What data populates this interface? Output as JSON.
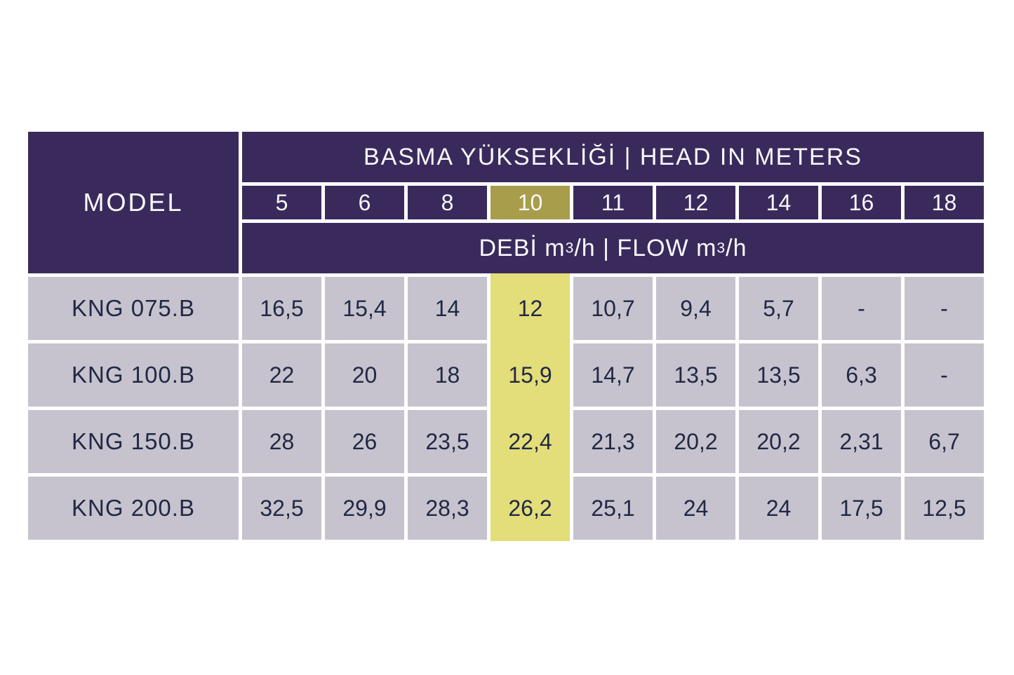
{
  "colors": {
    "header_purple": "#3a2a5c",
    "header_highlight_olive": "#a89d4a",
    "column_highlight_yellow": "#e3dd7a",
    "cell_gray": "#c6c3ce",
    "header_text": "#faf9fc",
    "cell_text": "#212844",
    "grid_gap_white": "#ffffff"
  },
  "table": {
    "model_header": "MODEL",
    "head_title": "BASMA YÜKSEKLİĞİ | HEAD IN METERS",
    "flow_label": {
      "p1": "DEBİ m",
      "sup1": "3",
      "p2": "/h | FLOW m",
      "sup2": "3",
      "p3": "/h"
    },
    "head_columns": [
      "5",
      "6",
      "8",
      "10",
      "11",
      "12",
      "14",
      "16",
      "18"
    ],
    "highlighted_column": "10",
    "rows": [
      {
        "model": "KNG 075.B",
        "values": [
          "16,5",
          "15,4",
          "14",
          "12",
          "10,7",
          "9,4",
          "5,7",
          "-",
          "-"
        ]
      },
      {
        "model": "KNG 100.B",
        "values": [
          "22",
          "20",
          "18",
          "15,9",
          "14,7",
          "13,5",
          "13,5",
          "6,3",
          "-"
        ]
      },
      {
        "model": "KNG 150.B",
        "values": [
          "28",
          "26",
          "23,5",
          "22,4",
          "21,3",
          "20,2",
          "20,2",
          "2,31",
          "6,7"
        ]
      },
      {
        "model": "KNG 200.B",
        "values": [
          "32,5",
          "29,9",
          "28,3",
          "26,2",
          "25,1",
          "24",
          "24",
          "17,5",
          "12,5"
        ]
      }
    ]
  },
  "chart_data": {
    "type": "table",
    "title": "BASMA YÜKSEKLİĞİ | HEAD IN METERS",
    "subtitle": "DEBİ m3/h | FLOW m3/h",
    "x_header_label": "MODEL",
    "head_in_meters": [
      5,
      6,
      8,
      10,
      11,
      12,
      14,
      16,
      18
    ],
    "highlighted_head_m": 10,
    "units": "m3/h",
    "series": [
      {
        "name": "KNG 075.B",
        "flow_m3h": [
          16.5,
          15.4,
          14,
          12,
          10.7,
          9.4,
          5.7,
          null,
          null
        ]
      },
      {
        "name": "KNG 100.B",
        "flow_m3h": [
          22,
          20,
          18,
          15.9,
          14.7,
          13.5,
          13.5,
          6.3,
          null
        ]
      },
      {
        "name": "KNG 150.B",
        "flow_m3h": [
          28,
          26,
          23.5,
          22.4,
          21.3,
          20.2,
          20.2,
          2.31,
          6.7
        ]
      },
      {
        "name": "KNG 200.B",
        "flow_m3h": [
          32.5,
          29.9,
          28.3,
          26.2,
          25.1,
          24,
          24,
          17.5,
          12.5
        ]
      }
    ]
  }
}
